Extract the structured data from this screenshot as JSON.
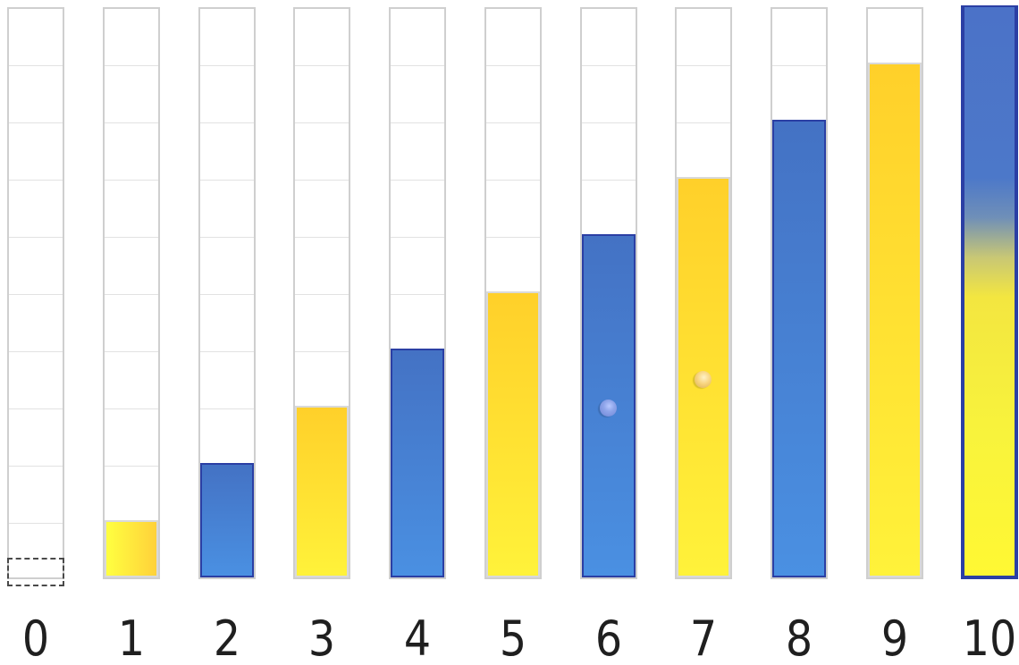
{
  "bars": [
    {
      "label": "0",
      "value": 0,
      "fill_style": "none",
      "has_slot": true,
      "dot": null,
      "dot_level": null
    },
    {
      "label": "1",
      "value": 1,
      "fill_style": "yellow-horizontal",
      "has_slot": false,
      "dot": null,
      "dot_level": null
    },
    {
      "label": "2",
      "value": 2,
      "fill_style": "blue",
      "has_slot": false,
      "dot": null,
      "dot_level": null
    },
    {
      "label": "3",
      "value": 3,
      "fill_style": "yellow",
      "has_slot": false,
      "dot": null,
      "dot_level": null
    },
    {
      "label": "4",
      "value": 4,
      "fill_style": "blue",
      "has_slot": false,
      "dot": null,
      "dot_level": null
    },
    {
      "label": "5",
      "value": 5,
      "fill_style": "yellow",
      "has_slot": false,
      "dot": null,
      "dot_level": null
    },
    {
      "label": "6",
      "value": 6,
      "fill_style": "blue",
      "has_slot": false,
      "dot": "blue",
      "dot_level": 3
    },
    {
      "label": "7",
      "value": 7,
      "fill_style": "yellow",
      "has_slot": false,
      "dot": "yellow",
      "dot_level": 3.5
    },
    {
      "label": "8",
      "value": 8,
      "fill_style": "blue",
      "has_slot": false,
      "dot": null,
      "dot_level": null
    },
    {
      "label": "9",
      "value": 9,
      "fill_style": "yellow",
      "has_slot": false,
      "dot": null,
      "dot_level": null
    },
    {
      "label": "10",
      "value": 10,
      "fill_style": "mixed",
      "has_slot": false,
      "dot": null,
      "dot_level": null
    }
  ],
  "scale_max": 10,
  "colors": {
    "blue_top": "#4472c4",
    "blue_bottom": "#4a90e2",
    "blue_border": "#2b3fa4",
    "yellow_top": "#ffd02a",
    "yellow_bottom": "#fff23a",
    "tube_border": "#cfcfcf",
    "grid_line": "#e2e2e2",
    "label_text": "#1f1f1f"
  }
}
